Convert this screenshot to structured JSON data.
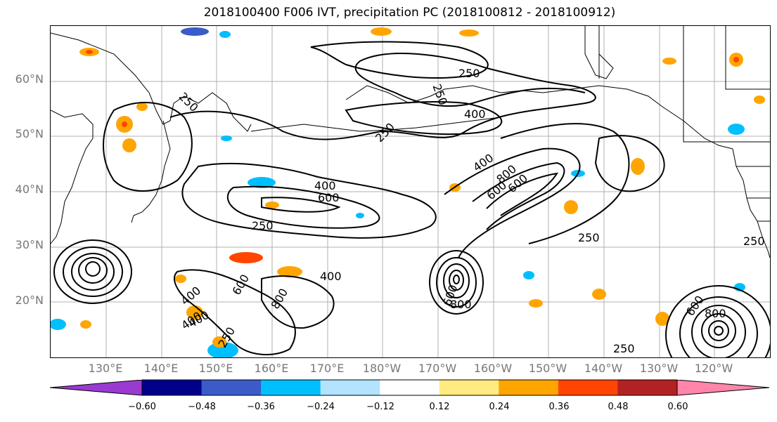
{
  "title": "2018100400 F006 IVT, precipitation PC (2018100812 - 2018100912)",
  "lat_labels": [
    "60°N",
    "50°N",
    "40°N",
    "30°N",
    "20°N"
  ],
  "lon_labels": [
    "130°E",
    "140°E",
    "150°E",
    "160°E",
    "170°E",
    "180°W",
    "170°W",
    "160°W",
    "150°W",
    "140°W",
    "130°W",
    "120°W"
  ],
  "contour_labels": [
    "250",
    "250",
    "250",
    "250",
    "400",
    "400",
    "600",
    "250",
    "400",
    "400",
    "600",
    "600",
    "800",
    "250",
    "400",
    "600",
    "800",
    "250",
    "250",
    "600",
    "800",
    "250",
    "400",
    "600",
    "800",
    "400"
  ],
  "colorbar": {
    "ticks": [
      "−0.60",
      "−0.48",
      "−0.36",
      "−0.24",
      "−0.12",
      "0.12",
      "0.24",
      "0.36",
      "0.48",
      "0.60"
    ],
    "colors": [
      "#9a3ad0",
      "#00008b",
      "#3a5bc8",
      "#00bfff",
      "#b2e3ff",
      "#ffffff",
      "#ffeb80",
      "#ffa500",
      "#ff4500",
      "#b22222",
      "#ff85aa"
    ]
  }
}
